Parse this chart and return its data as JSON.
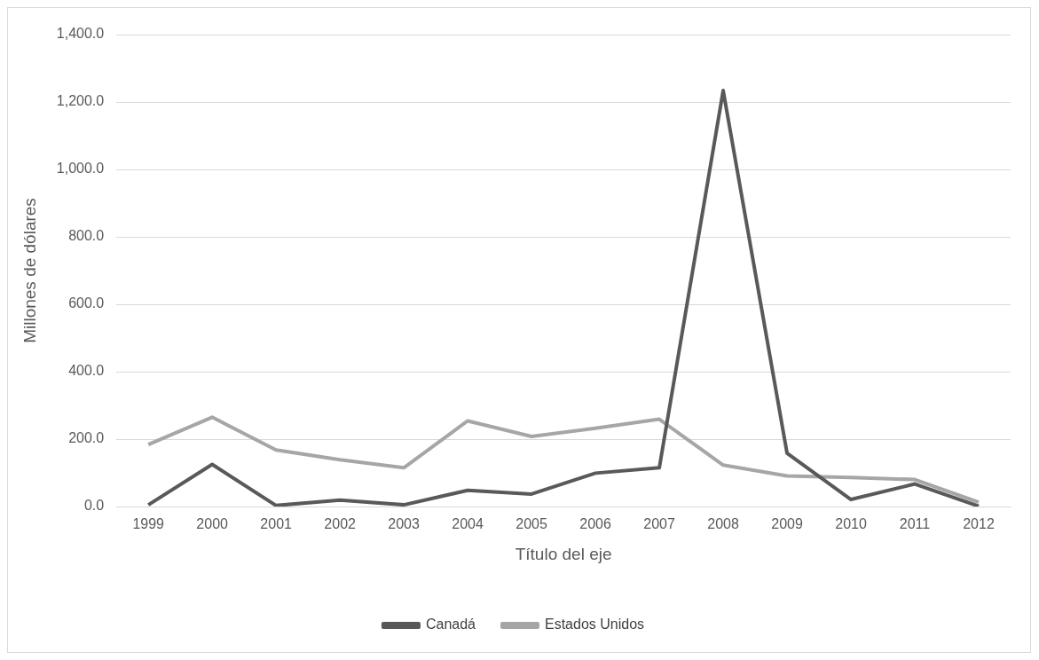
{
  "chart_data": {
    "type": "line",
    "xlabel": "Título del eje",
    "ylabel": "Millones de dólares",
    "categories": [
      "1999",
      "2000",
      "2001",
      "2002",
      "2003",
      "2004",
      "2005",
      "2006",
      "2007",
      "2008",
      "2009",
      "2010",
      "2011",
      "2012"
    ],
    "series": [
      {
        "name": "Canadá",
        "color": "#595959",
        "values": [
          5,
          125,
          3,
          19,
          5,
          48,
          37,
          99,
          115,
          1234,
          158,
          21,
          67,
          1
        ]
      },
      {
        "name": "Estados Unidos",
        "color": "#a6a6a6",
        "values": [
          184,
          265,
          168,
          139,
          115,
          254,
          208,
          232,
          259,
          123,
          91,
          86,
          80,
          13
        ]
      }
    ],
    "ylim": [
      0,
      1400
    ],
    "yticks": [
      {
        "value": 0,
        "label": "0.0"
      },
      {
        "value": 200,
        "label": "200.0"
      },
      {
        "value": 400,
        "label": "400.0"
      },
      {
        "value": 600,
        "label": "600.0"
      },
      {
        "value": 800,
        "label": "800.0"
      },
      {
        "value": 1000,
        "label": "1,000.0"
      },
      {
        "value": 1200,
        "label": "1,200.0"
      },
      {
        "value": 1400,
        "label": "1,400.0"
      }
    ],
    "grid": "y",
    "legend": "bottom",
    "marker": "none",
    "line_style": "solid"
  }
}
